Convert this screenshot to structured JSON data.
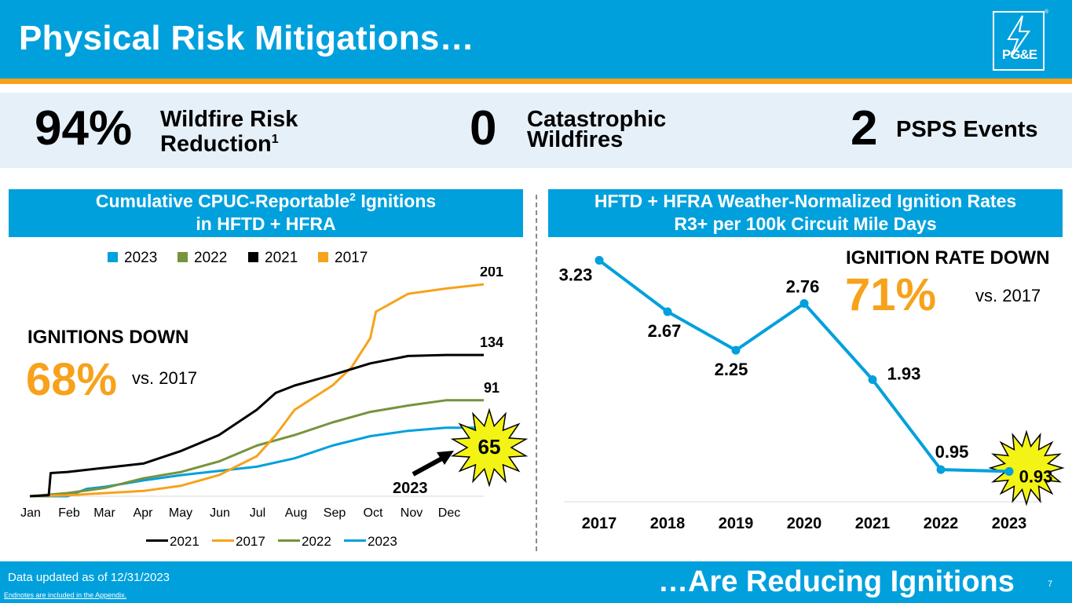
{
  "header": {
    "title": "Physical Risk Mitigations…",
    "logo_text": "PG&E",
    "logo_reg": "®"
  },
  "colors": {
    "brand_blue": "#00a0dd",
    "orange": "#f7a21b",
    "green": "#77933c",
    "black": "#000000",
    "band": "#e6f0f9",
    "burst": "#f3f416"
  },
  "kpis": [
    {
      "value": "94%",
      "label_line1": "Wildfire Risk",
      "label_line2": "Reduction",
      "label_sup": "1"
    },
    {
      "value": "0",
      "label_line1": "Catastrophic",
      "label_line2": "Wildfires"
    },
    {
      "value": "2",
      "label_line1": "PSPS Events"
    }
  ],
  "left_panel": {
    "header_line1_a": "Cumulative CPUC-Reportable",
    "header_sup": "2",
    "header_line1_b": " Ignitions",
    "header_line2": "in HFTD + HFRA",
    "callout_title": "IGNITIONS DOWN",
    "callout_value": "68%",
    "callout_vs": "vs. 2017",
    "arrow_label": "2023",
    "burst_label": "65"
  },
  "right_panel": {
    "header_line1": "HFTD + HFRA Weather-Normalized Ignition Rates",
    "header_line2": "R3+ per 100k Circuit Mile Days",
    "callout_title": "IGNITION RATE DOWN",
    "callout_value": "71%",
    "callout_vs": "vs. 2017"
  },
  "chart_data": [
    {
      "type": "line",
      "title": "Cumulative CPUC-Reportable Ignitions in HFTD + HFRA",
      "x_ticks": [
        "Jan",
        "Feb",
        "Mar",
        "Apr",
        "May",
        "Jun",
        "Jul",
        "Aug",
        "Sep",
        "Oct",
        "Nov",
        "Dec"
      ],
      "xlim": [
        0,
        12
      ],
      "ylim": [
        0,
        210
      ],
      "top_legend": [
        "2023",
        "2022",
        "2021",
        "2017"
      ],
      "bottom_legend": [
        "2021",
        "2017",
        "2022",
        "2023"
      ],
      "series": [
        {
          "name": "2017",
          "color": "#f7a21b",
          "end_label": "201",
          "x": [
            0,
            1,
            2,
            3,
            4,
            5,
            6,
            6.5,
            7,
            8,
            8.5,
            9,
            9.15,
            10,
            11,
            12
          ],
          "values": [
            0,
            1,
            3,
            5,
            10,
            20,
            38,
            58,
            82,
            105,
            122,
            150,
            175,
            192,
            197,
            201
          ]
        },
        {
          "name": "2021",
          "color": "#000000",
          "end_label": "134",
          "x": [
            0,
            0.5,
            0.55,
            1,
            2,
            3,
            4,
            5,
            6,
            6.5,
            7,
            8,
            9,
            10,
            11,
            12
          ],
          "values": [
            0,
            1,
            22,
            23,
            27,
            31,
            43,
            58,
            82,
            98,
            105,
            115,
            126,
            133,
            134,
            134
          ]
        },
        {
          "name": "2022",
          "color": "#77933c",
          "end_label": "91",
          "x": [
            0,
            1,
            2,
            3,
            4,
            5,
            6,
            7,
            8,
            9,
            10,
            11,
            12
          ],
          "values": [
            0,
            3,
            8,
            17,
            23,
            33,
            48,
            58,
            70,
            80,
            86,
            91,
            91
          ]
        },
        {
          "name": "2023",
          "color": "#00a0dd",
          "end_label": "65",
          "x": [
            0,
            1,
            1.5,
            2,
            3,
            4,
            5,
            6,
            7,
            8,
            9,
            10,
            11,
            12
          ],
          "values": [
            0,
            0,
            7,
            9,
            15,
            20,
            24,
            28,
            36,
            48,
            57,
            62,
            65,
            65
          ]
        }
      ]
    },
    {
      "type": "line",
      "title": "HFTD + HFRA Weather-Normalized Ignition Rates R3+ per 100k Circuit Mile Days",
      "categories": [
        "2017",
        "2018",
        "2019",
        "2020",
        "2021",
        "2022",
        "2023"
      ],
      "ylim": [
        0.6,
        3.5
      ],
      "series": [
        {
          "name": "Ignition Rate",
          "color": "#00a0dd",
          "values": [
            3.23,
            2.67,
            2.25,
            2.76,
            1.93,
            0.95,
            0.93
          ],
          "labels": [
            "3.23",
            "2.67",
            "2.25",
            "2.76",
            "1.93",
            "0.95",
            "0.93"
          ]
        }
      ]
    }
  ],
  "footer": {
    "updated": "Data updated as of 12/31/2023",
    "endnotes": "Endnotes are included in the Appendix.",
    "tagline": "…Are Reducing Ignitions",
    "page": "7"
  }
}
